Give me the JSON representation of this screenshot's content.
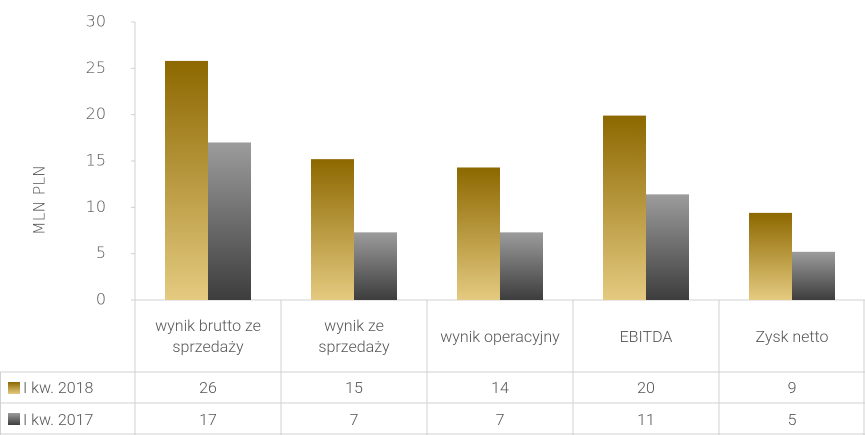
{
  "chart_data": {
    "type": "bar",
    "y_axis_label": "MLN PLN",
    "categories": [
      "wynik brutto ze sprzedaży",
      "wynik ze sprzedaży",
      "wynik operacyjny",
      "EBITDA",
      "Zysk netto"
    ],
    "series": [
      {
        "name": "I kw. 2018",
        "color": "#c99400",
        "values": [
          25.8,
          15.2,
          14.3,
          19.9,
          9.4
        ],
        "value_labels": [
          "26",
          "15",
          "14",
          "20",
          "9"
        ]
      },
      {
        "name": "I kw. 2017",
        "color": "#666666",
        "values": [
          17.0,
          7.3,
          7.3,
          11.4,
          5.2
        ],
        "value_labels": [
          "17",
          "7",
          "7",
          "11",
          "5"
        ]
      }
    ],
    "ylim": [
      0,
      30
    ],
    "yticks": [
      0,
      5,
      10,
      15,
      20,
      25,
      30
    ],
    "grid": false
  }
}
